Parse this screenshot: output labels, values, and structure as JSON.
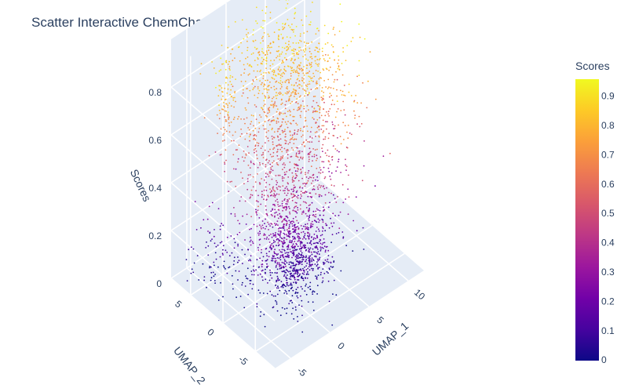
{
  "chart_data": {
    "type": "scatter",
    "title": "Scatter Interactive ChemCharts Plot",
    "x_axis": {
      "label": "UMAP_1",
      "ticks": [
        -5,
        0,
        5,
        10
      ],
      "range": [
        -7,
        12
      ]
    },
    "y_axis": {
      "label": "UMAP_2",
      "ticks": [
        -5,
        0,
        5
      ],
      "range": [
        -8,
        8
      ]
    },
    "z_axis": {
      "label": "Scores",
      "ticks": [
        0,
        0.2,
        0.4,
        0.6,
        0.8
      ],
      "tick_labels": [
        "0",
        "0.2",
        "0.4",
        "0.6",
        "0.8"
      ],
      "range": [
        0,
        1
      ]
    },
    "colorbar": {
      "title": "Scores",
      "ticks": [
        0,
        0.1,
        0.2,
        0.3,
        0.4,
        0.5,
        0.6,
        0.7,
        0.8,
        0.9
      ],
      "tick_labels": [
        "0",
        "0.1",
        "0.2",
        "0.3",
        "0.4",
        "0.5",
        "0.6",
        "0.7",
        "0.8",
        "0.9"
      ],
      "range": [
        0,
        0.96
      ],
      "colorscale": [
        "#0d0887",
        "#46039f",
        "#7201a8",
        "#9c179e",
        "#bd3786",
        "#d8576b",
        "#ed7953",
        "#fb9f3a",
        "#fdca26",
        "#f0f921"
      ]
    },
    "clusters": [
      {
        "x": 2.0,
        "y": -1.0,
        "z": 0.12,
        "sx": 1.6,
        "sy": 1.6,
        "sz": 0.07,
        "n": 500
      },
      {
        "x": -0.5,
        "y": -1.5,
        "z": 0.25,
        "sx": 1.8,
        "sy": 2.0,
        "sz": 0.15,
        "n": 550
      },
      {
        "x": 1.0,
        "y": 0.0,
        "z": 0.55,
        "sx": 2.8,
        "sy": 2.8,
        "sz": 0.15,
        "n": 650
      },
      {
        "x": 3.0,
        "y": 2.0,
        "z": 0.8,
        "sx": 3.0,
        "sy": 3.0,
        "sz": 0.08,
        "n": 650
      },
      {
        "x": -4.0,
        "y": 3.0,
        "z": 0.75,
        "sx": 0.4,
        "sy": 0.6,
        "sz": 0.1,
        "n": 70
      },
      {
        "x": 7.0,
        "y": 1.0,
        "z": 0.35,
        "sx": 1.8,
        "sy": 2.0,
        "sz": 0.22,
        "n": 160
      },
      {
        "x": -3.0,
        "y": 5.0,
        "z": 0.05,
        "sx": 1.5,
        "sy": 2.0,
        "sz": 0.08,
        "n": 120
      }
    ],
    "grid": true,
    "background": "#e5ecf6"
  }
}
